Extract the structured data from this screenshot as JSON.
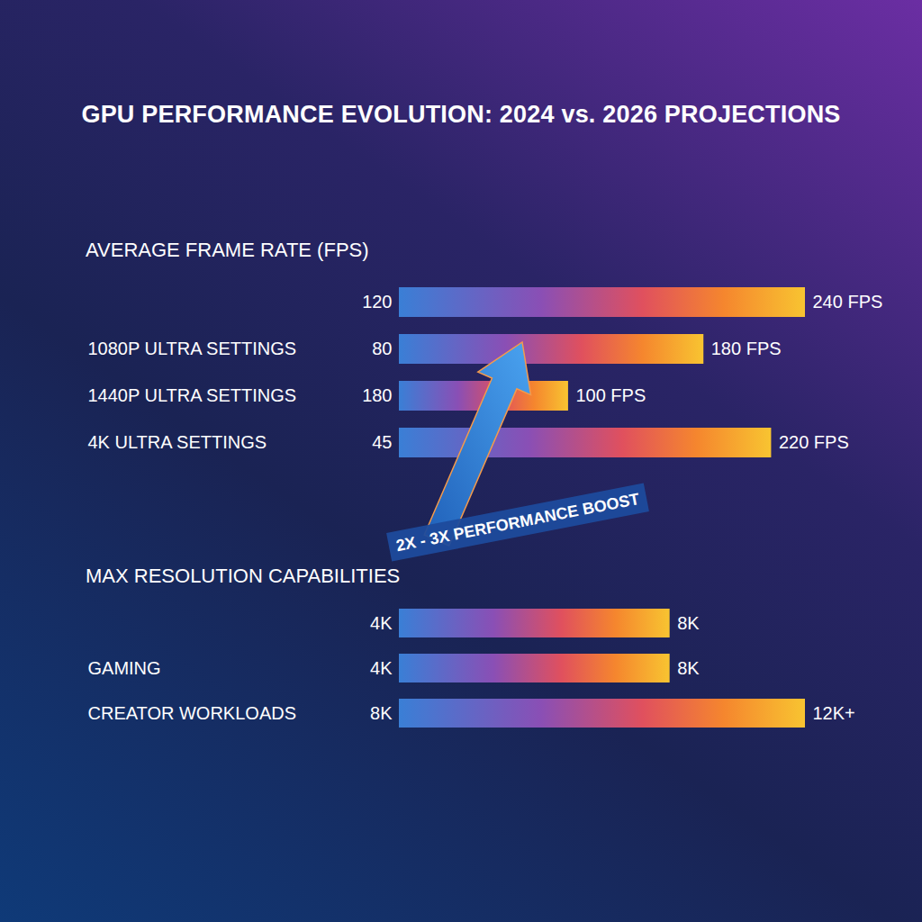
{
  "title": "GPU PERFORMANCE EVOLUTION: 2024 vs. 2026 PROJECTIONS",
  "chart_data": [
    {
      "type": "bar",
      "orientation": "horizontal",
      "title": "AVERAGE FRAME RATE (FPS)",
      "categories": [
        null,
        "1080P ULTRA SETTINGS",
        "1440P ULTRA SETTINGS",
        "4K ULTRA SETTINGS"
      ],
      "series": [
        {
          "name": "2024",
          "values": [
            120,
            80,
            180,
            45
          ]
        },
        {
          "name": "2026",
          "values": [
            240,
            180,
            100,
            220
          ],
          "value_labels": [
            "240 FPS",
            "180 FPS",
            "100 FPS",
            "220 FPS"
          ]
        }
      ],
      "xlim": [
        0,
        240
      ],
      "tick_labels": false,
      "grid": false,
      "data_labels": true,
      "annotations": [
        "2X - 3X PERFORMANCE BOOST"
      ]
    },
    {
      "type": "bar",
      "orientation": "horizontal",
      "title": "MAX RESOLUTION CAPABILITIES",
      "categories": [
        null,
        "GAMING",
        "CREATOR WORKLOADS"
      ],
      "series": [
        {
          "name": "2024",
          "values": [
            4,
            4,
            8
          ],
          "value_labels": [
            "4K",
            "4K",
            "8K"
          ]
        },
        {
          "name": "2026",
          "values": [
            8,
            8,
            12
          ],
          "value_labels": [
            "8K",
            "8K",
            "12K+"
          ]
        }
      ],
      "xlim": [
        0,
        12
      ],
      "tick_labels": false,
      "grid": false,
      "data_labels": true
    }
  ]
}
